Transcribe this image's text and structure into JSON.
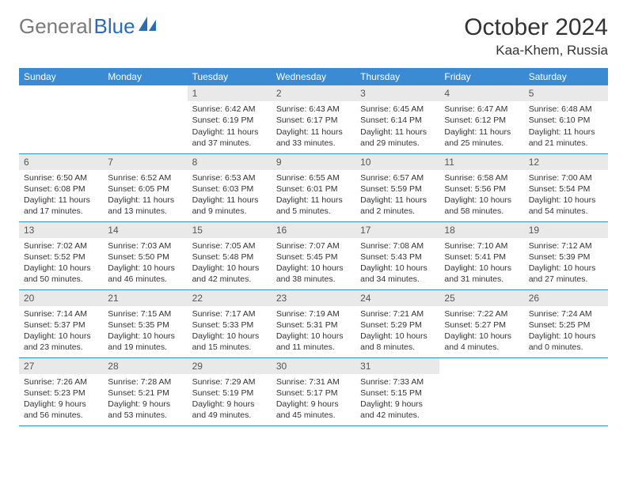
{
  "brand": {
    "part1": "General",
    "part2": "Blue"
  },
  "title": "October 2024",
  "location": "Kaa-Khem, Russia",
  "colors": {
    "header_bg": "#3b8bd4",
    "header_text": "#ffffff",
    "daynum_bg": "#e9e9e9",
    "border": "#3b8bd4",
    "logo_gray": "#7a7a7a",
    "logo_blue": "#2a6db5"
  },
  "weekdays": [
    "Sunday",
    "Monday",
    "Tuesday",
    "Wednesday",
    "Thursday",
    "Friday",
    "Saturday"
  ],
  "weeks": [
    [
      null,
      null,
      {
        "n": "1",
        "sr": "6:42 AM",
        "ss": "6:19 PM",
        "dl": "11 hours and 37 minutes."
      },
      {
        "n": "2",
        "sr": "6:43 AM",
        "ss": "6:17 PM",
        "dl": "11 hours and 33 minutes."
      },
      {
        "n": "3",
        "sr": "6:45 AM",
        "ss": "6:14 PM",
        "dl": "11 hours and 29 minutes."
      },
      {
        "n": "4",
        "sr": "6:47 AM",
        "ss": "6:12 PM",
        "dl": "11 hours and 25 minutes."
      },
      {
        "n": "5",
        "sr": "6:48 AM",
        "ss": "6:10 PM",
        "dl": "11 hours and 21 minutes."
      }
    ],
    [
      {
        "n": "6",
        "sr": "6:50 AM",
        "ss": "6:08 PM",
        "dl": "11 hours and 17 minutes."
      },
      {
        "n": "7",
        "sr": "6:52 AM",
        "ss": "6:05 PM",
        "dl": "11 hours and 13 minutes."
      },
      {
        "n": "8",
        "sr": "6:53 AM",
        "ss": "6:03 PM",
        "dl": "11 hours and 9 minutes."
      },
      {
        "n": "9",
        "sr": "6:55 AM",
        "ss": "6:01 PM",
        "dl": "11 hours and 5 minutes."
      },
      {
        "n": "10",
        "sr": "6:57 AM",
        "ss": "5:59 PM",
        "dl": "11 hours and 2 minutes."
      },
      {
        "n": "11",
        "sr": "6:58 AM",
        "ss": "5:56 PM",
        "dl": "10 hours and 58 minutes."
      },
      {
        "n": "12",
        "sr": "7:00 AM",
        "ss": "5:54 PM",
        "dl": "10 hours and 54 minutes."
      }
    ],
    [
      {
        "n": "13",
        "sr": "7:02 AM",
        "ss": "5:52 PM",
        "dl": "10 hours and 50 minutes."
      },
      {
        "n": "14",
        "sr": "7:03 AM",
        "ss": "5:50 PM",
        "dl": "10 hours and 46 minutes."
      },
      {
        "n": "15",
        "sr": "7:05 AM",
        "ss": "5:48 PM",
        "dl": "10 hours and 42 minutes."
      },
      {
        "n": "16",
        "sr": "7:07 AM",
        "ss": "5:45 PM",
        "dl": "10 hours and 38 minutes."
      },
      {
        "n": "17",
        "sr": "7:08 AM",
        "ss": "5:43 PM",
        "dl": "10 hours and 34 minutes."
      },
      {
        "n": "18",
        "sr": "7:10 AM",
        "ss": "5:41 PM",
        "dl": "10 hours and 31 minutes."
      },
      {
        "n": "19",
        "sr": "7:12 AM",
        "ss": "5:39 PM",
        "dl": "10 hours and 27 minutes."
      }
    ],
    [
      {
        "n": "20",
        "sr": "7:14 AM",
        "ss": "5:37 PM",
        "dl": "10 hours and 23 minutes."
      },
      {
        "n": "21",
        "sr": "7:15 AM",
        "ss": "5:35 PM",
        "dl": "10 hours and 19 minutes."
      },
      {
        "n": "22",
        "sr": "7:17 AM",
        "ss": "5:33 PM",
        "dl": "10 hours and 15 minutes."
      },
      {
        "n": "23",
        "sr": "7:19 AM",
        "ss": "5:31 PM",
        "dl": "10 hours and 11 minutes."
      },
      {
        "n": "24",
        "sr": "7:21 AM",
        "ss": "5:29 PM",
        "dl": "10 hours and 8 minutes."
      },
      {
        "n": "25",
        "sr": "7:22 AM",
        "ss": "5:27 PM",
        "dl": "10 hours and 4 minutes."
      },
      {
        "n": "26",
        "sr": "7:24 AM",
        "ss": "5:25 PM",
        "dl": "10 hours and 0 minutes."
      }
    ],
    [
      {
        "n": "27",
        "sr": "7:26 AM",
        "ss": "5:23 PM",
        "dl": "9 hours and 56 minutes."
      },
      {
        "n": "28",
        "sr": "7:28 AM",
        "ss": "5:21 PM",
        "dl": "9 hours and 53 minutes."
      },
      {
        "n": "29",
        "sr": "7:29 AM",
        "ss": "5:19 PM",
        "dl": "9 hours and 49 minutes."
      },
      {
        "n": "30",
        "sr": "7:31 AM",
        "ss": "5:17 PM",
        "dl": "9 hours and 45 minutes."
      },
      {
        "n": "31",
        "sr": "7:33 AM",
        "ss": "5:15 PM",
        "dl": "9 hours and 42 minutes."
      },
      null,
      null
    ]
  ],
  "labels": {
    "sunrise": "Sunrise:",
    "sunset": "Sunset:",
    "daylight": "Daylight:"
  }
}
